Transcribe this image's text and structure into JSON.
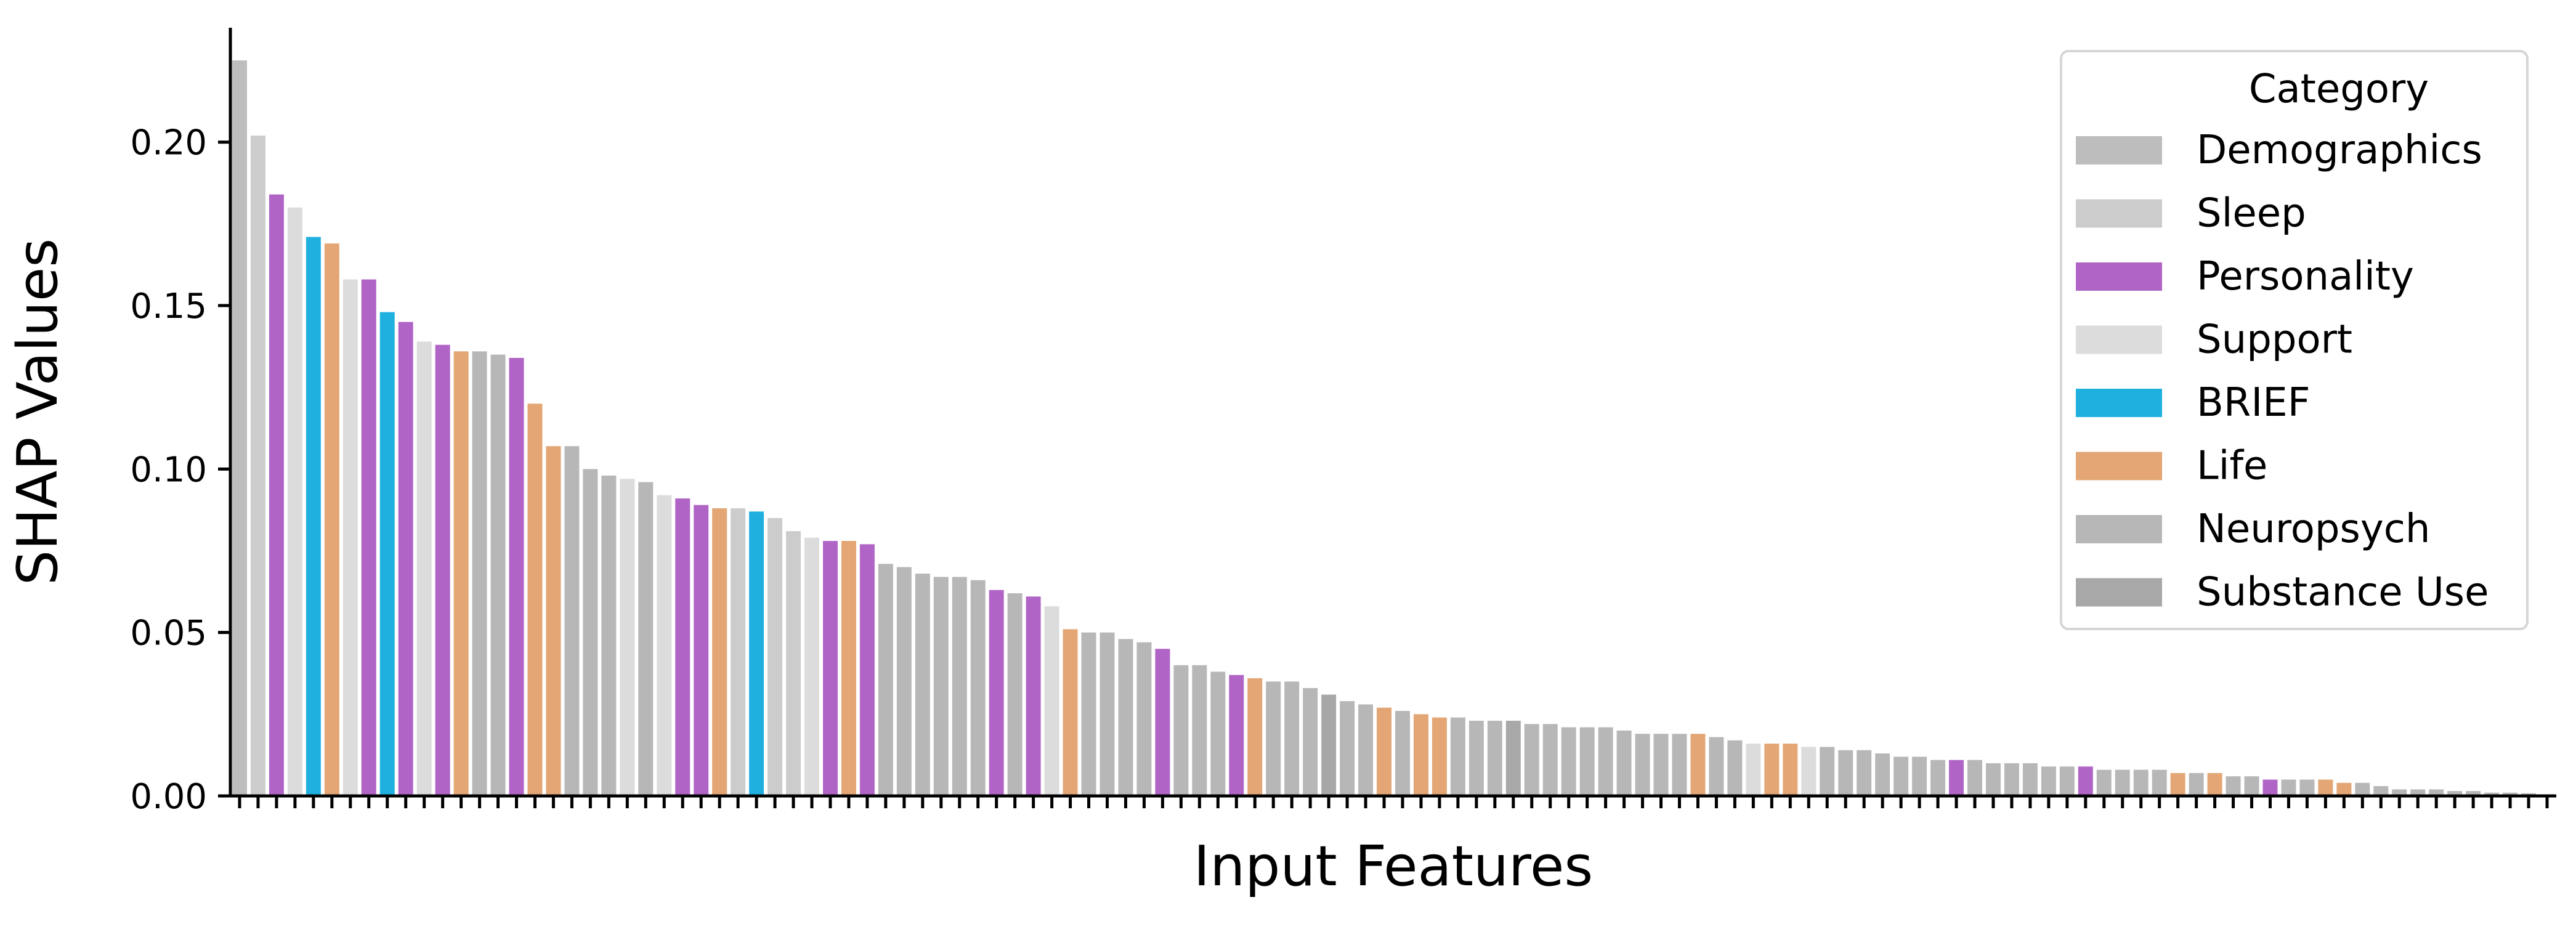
{
  "chart_data": {
    "type": "bar",
    "title": "",
    "xlabel": "Input Features",
    "ylabel": "SHAP Values",
    "ylim": [
      0,
      0.235
    ],
    "yticks": [
      "0.00",
      "0.05",
      "0.10",
      "0.15",
      "0.20"
    ],
    "grid": false,
    "legend": {
      "title": "Category",
      "position": "top-right",
      "entries": [
        {
          "name": "Demographics",
          "color": "#bdbdbd"
        },
        {
          "name": "Sleep",
          "color": "#cccccc"
        },
        {
          "name": "Personality",
          "color": "#b065c6"
        },
        {
          "name": "Support",
          "color": "#dcdcdc"
        },
        {
          "name": "BRIEF",
          "color": "#20b0e0"
        },
        {
          "name": "Life",
          "color": "#e3a674"
        },
        {
          "name": "Neuropsych",
          "color": "#b7b7b7"
        },
        {
          "name": "Substance Use",
          "color": "#a8a8a8"
        }
      ]
    },
    "bars": [
      {
        "value": 0.225,
        "category": "Demographics"
      },
      {
        "value": 0.202,
        "category": "Sleep"
      },
      {
        "value": 0.184,
        "category": "Personality"
      },
      {
        "value": 0.18,
        "category": "Support"
      },
      {
        "value": 0.171,
        "category": "BRIEF"
      },
      {
        "value": 0.169,
        "category": "Life"
      },
      {
        "value": 0.158,
        "category": "Support"
      },
      {
        "value": 0.158,
        "category": "Personality"
      },
      {
        "value": 0.148,
        "category": "BRIEF"
      },
      {
        "value": 0.145,
        "category": "Personality"
      },
      {
        "value": 0.139,
        "category": "Support"
      },
      {
        "value": 0.138,
        "category": "Personality"
      },
      {
        "value": 0.136,
        "category": "Life"
      },
      {
        "value": 0.136,
        "category": "Neuropsych"
      },
      {
        "value": 0.135,
        "category": "Neuropsych"
      },
      {
        "value": 0.134,
        "category": "Personality"
      },
      {
        "value": 0.12,
        "category": "Life"
      },
      {
        "value": 0.107,
        "category": "Life"
      },
      {
        "value": 0.107,
        "category": "Neuropsych"
      },
      {
        "value": 0.1,
        "category": "Neuropsych"
      },
      {
        "value": 0.098,
        "category": "Neuropsych"
      },
      {
        "value": 0.097,
        "category": "Support"
      },
      {
        "value": 0.096,
        "category": "Neuropsych"
      },
      {
        "value": 0.092,
        "category": "Support"
      },
      {
        "value": 0.091,
        "category": "Personality"
      },
      {
        "value": 0.089,
        "category": "Personality"
      },
      {
        "value": 0.088,
        "category": "Life"
      },
      {
        "value": 0.088,
        "category": "Sleep"
      },
      {
        "value": 0.087,
        "category": "BRIEF"
      },
      {
        "value": 0.085,
        "category": "Sleep"
      },
      {
        "value": 0.081,
        "category": "Sleep"
      },
      {
        "value": 0.079,
        "category": "Support"
      },
      {
        "value": 0.078,
        "category": "Personality"
      },
      {
        "value": 0.078,
        "category": "Life"
      },
      {
        "value": 0.077,
        "category": "Personality"
      },
      {
        "value": 0.071,
        "category": "Neuropsych"
      },
      {
        "value": 0.07,
        "category": "Neuropsych"
      },
      {
        "value": 0.068,
        "category": "Neuropsych"
      },
      {
        "value": 0.067,
        "category": "Neuropsych"
      },
      {
        "value": 0.067,
        "category": "Neuropsych"
      },
      {
        "value": 0.066,
        "category": "Neuropsych"
      },
      {
        "value": 0.063,
        "category": "Personality"
      },
      {
        "value": 0.062,
        "category": "Neuropsych"
      },
      {
        "value": 0.061,
        "category": "Personality"
      },
      {
        "value": 0.058,
        "category": "Support"
      },
      {
        "value": 0.051,
        "category": "Life"
      },
      {
        "value": 0.05,
        "category": "Neuropsych"
      },
      {
        "value": 0.05,
        "category": "Neuropsych"
      },
      {
        "value": 0.048,
        "category": "Neuropsych"
      },
      {
        "value": 0.047,
        "category": "Neuropsych"
      },
      {
        "value": 0.045,
        "category": "Personality"
      },
      {
        "value": 0.04,
        "category": "Neuropsych"
      },
      {
        "value": 0.04,
        "category": "Neuropsych"
      },
      {
        "value": 0.038,
        "category": "Neuropsych"
      },
      {
        "value": 0.037,
        "category": "Personality"
      },
      {
        "value": 0.036,
        "category": "Life"
      },
      {
        "value": 0.035,
        "category": "Neuropsych"
      },
      {
        "value": 0.035,
        "category": "Neuropsych"
      },
      {
        "value": 0.033,
        "category": "Neuropsych"
      },
      {
        "value": 0.031,
        "category": "Substance Use"
      },
      {
        "value": 0.029,
        "category": "Neuropsych"
      },
      {
        "value": 0.028,
        "category": "Neuropsych"
      },
      {
        "value": 0.027,
        "category": "Life"
      },
      {
        "value": 0.026,
        "category": "Neuropsych"
      },
      {
        "value": 0.025,
        "category": "Life"
      },
      {
        "value": 0.024,
        "category": "Life"
      },
      {
        "value": 0.024,
        "category": "Neuropsych"
      },
      {
        "value": 0.023,
        "category": "Neuropsych"
      },
      {
        "value": 0.023,
        "category": "Neuropsych"
      },
      {
        "value": 0.023,
        "category": "Substance Use"
      },
      {
        "value": 0.022,
        "category": "Neuropsych"
      },
      {
        "value": 0.022,
        "category": "Neuropsych"
      },
      {
        "value": 0.021,
        "category": "Neuropsych"
      },
      {
        "value": 0.021,
        "category": "Neuropsych"
      },
      {
        "value": 0.021,
        "category": "Neuropsych"
      },
      {
        "value": 0.02,
        "category": "Neuropsych"
      },
      {
        "value": 0.019,
        "category": "Neuropsych"
      },
      {
        "value": 0.019,
        "category": "Neuropsych"
      },
      {
        "value": 0.019,
        "category": "Neuropsych"
      },
      {
        "value": 0.019,
        "category": "Life"
      },
      {
        "value": 0.018,
        "category": "Neuropsych"
      },
      {
        "value": 0.017,
        "category": "Neuropsych"
      },
      {
        "value": 0.016,
        "category": "Support"
      },
      {
        "value": 0.016,
        "category": "Life"
      },
      {
        "value": 0.016,
        "category": "Life"
      },
      {
        "value": 0.015,
        "category": "Support"
      },
      {
        "value": 0.015,
        "category": "Neuropsych"
      },
      {
        "value": 0.014,
        "category": "Neuropsych"
      },
      {
        "value": 0.014,
        "category": "Neuropsych"
      },
      {
        "value": 0.013,
        "category": "Neuropsych"
      },
      {
        "value": 0.012,
        "category": "Neuropsych"
      },
      {
        "value": 0.012,
        "category": "Neuropsych"
      },
      {
        "value": 0.011,
        "category": "Neuropsych"
      },
      {
        "value": 0.011,
        "category": "Personality"
      },
      {
        "value": 0.011,
        "category": "Neuropsych"
      },
      {
        "value": 0.01,
        "category": "Neuropsych"
      },
      {
        "value": 0.01,
        "category": "Neuropsych"
      },
      {
        "value": 0.01,
        "category": "Neuropsych"
      },
      {
        "value": 0.009,
        "category": "Neuropsych"
      },
      {
        "value": 0.009,
        "category": "Neuropsych"
      },
      {
        "value": 0.009,
        "category": "Personality"
      },
      {
        "value": 0.008,
        "category": "Neuropsych"
      },
      {
        "value": 0.008,
        "category": "Neuropsych"
      },
      {
        "value": 0.008,
        "category": "Neuropsych"
      },
      {
        "value": 0.008,
        "category": "Neuropsych"
      },
      {
        "value": 0.007,
        "category": "Life"
      },
      {
        "value": 0.007,
        "category": "Neuropsych"
      },
      {
        "value": 0.007,
        "category": "Life"
      },
      {
        "value": 0.006,
        "category": "Neuropsych"
      },
      {
        "value": 0.006,
        "category": "Neuropsych"
      },
      {
        "value": 0.005,
        "category": "Personality"
      },
      {
        "value": 0.005,
        "category": "Neuropsych"
      },
      {
        "value": 0.005,
        "category": "Neuropsych"
      },
      {
        "value": 0.005,
        "category": "Life"
      },
      {
        "value": 0.004,
        "category": "Life"
      },
      {
        "value": 0.004,
        "category": "Neuropsych"
      },
      {
        "value": 0.003,
        "category": "Neuropsych"
      },
      {
        "value": 0.002,
        "category": "Neuropsych"
      },
      {
        "value": 0.002,
        "category": "Neuropsych"
      },
      {
        "value": 0.002,
        "category": "Neuropsych"
      },
      {
        "value": 0.0015,
        "category": "Neuropsych"
      },
      {
        "value": 0.0015,
        "category": "Neuropsych"
      },
      {
        "value": 0.001,
        "category": "Neuropsych"
      },
      {
        "value": 0.001,
        "category": "Neuropsych"
      },
      {
        "value": 0.0008,
        "category": "Neuropsych"
      },
      {
        "value": 0.0005,
        "category": "Neuropsych"
      }
    ]
  }
}
